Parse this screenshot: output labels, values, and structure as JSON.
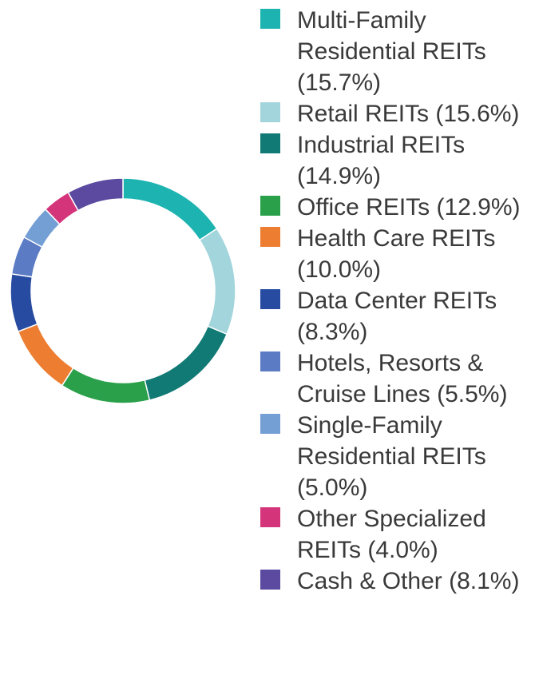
{
  "chart_data": {
    "type": "pie",
    "title": "",
    "donut": true,
    "legend_position": "right",
    "categories": [
      "Multi-Family Residential REITs",
      "Retail REITs",
      "Industrial REITs",
      "Office REITs",
      "Health Care REITs",
      "Data Center REITs",
      "Hotels, Resorts & Cruise Lines",
      "Single-Family Residential REITs",
      "Other Specialized REITs",
      "Cash & Other"
    ],
    "values": [
      15.7,
      15.6,
      14.9,
      12.9,
      10.0,
      8.3,
      5.5,
      5.0,
      4.0,
      8.1
    ],
    "colors": [
      "#1cb3b0",
      "#a3d5dc",
      "#117a75",
      "#2aa04a",
      "#ed7d31",
      "#264ba1",
      "#5b7bc4",
      "#749fd5",
      "#d4357a",
      "#5b4aa0"
    ],
    "legend": [
      {
        "label": "Multi-Family Residential REITs (15.7%)",
        "color": "#1cb3b0"
      },
      {
        "label": "Retail REITs (15.6%)",
        "color": "#a3d5dc"
      },
      {
        "label": "Industrial REITs (14.9%)",
        "color": "#117a75"
      },
      {
        "label": "Office REITs (12.9%)",
        "color": "#2aa04a"
      },
      {
        "label": "Health Care REITs (10.0%)",
        "color": "#ed7d31"
      },
      {
        "label": "Data Center REITs (8.3%)",
        "color": "#264ba1"
      },
      {
        "label": "Hotels, Resorts & Cruise Lines (5.5%)",
        "color": "#5b7bc4"
      },
      {
        "label": "Single-Family Residential REITs (5.0%)",
        "color": "#749fd5"
      },
      {
        "label": "Other Specialized REITs (4.0%)",
        "color": "#d4357a"
      },
      {
        "label": "Cash & Other (8.1%)",
        "color": "#5b4aa0"
      }
    ]
  }
}
